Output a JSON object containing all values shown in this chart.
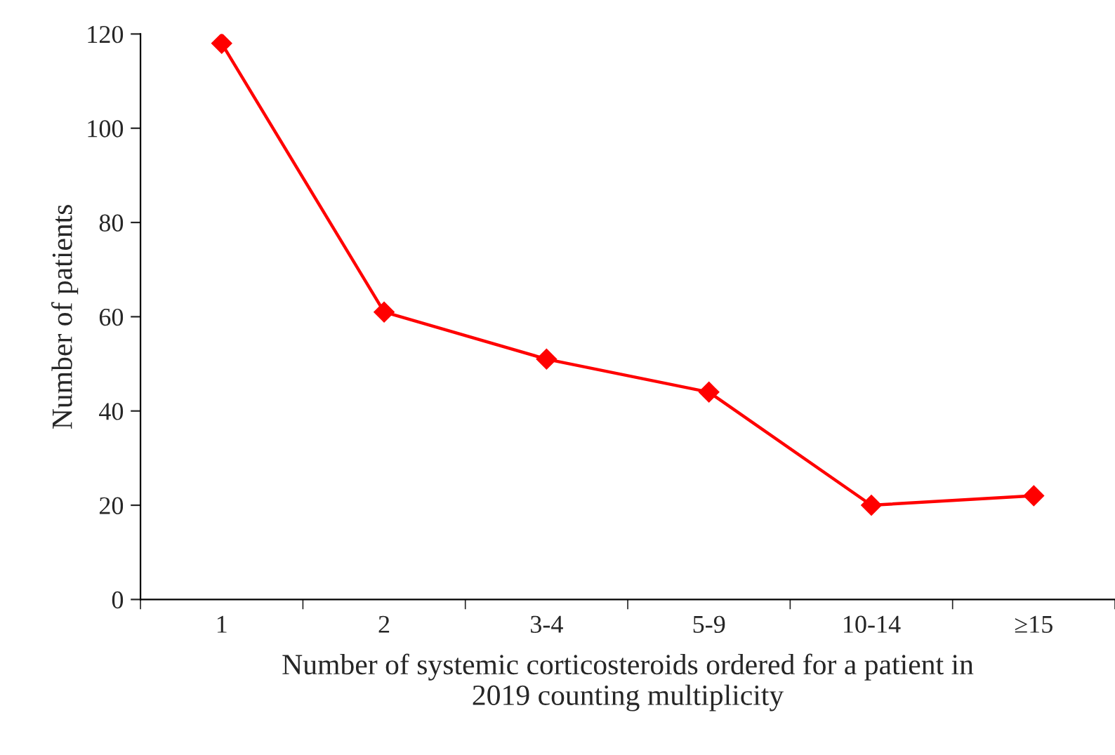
{
  "chart_data": {
    "type": "line",
    "xlabel": "Number of systemic corticosteroids ordered for a patient in\n2019 counting multiplicity",
    "ylabel": "Number of patients",
    "categories": [
      "1",
      "2",
      "3-4",
      "5-9",
      "10-14",
      "≥15"
    ],
    "series": [
      {
        "color": "#ff0000",
        "values": [
          118,
          61,
          51,
          44,
          20,
          22
        ]
      }
    ],
    "ylim": [
      0,
      120
    ],
    "yticks": [
      0,
      20,
      40,
      60,
      80,
      100,
      120
    ],
    "marker": "diamond",
    "line_style": "solid",
    "grid": false,
    "legend": false
  }
}
